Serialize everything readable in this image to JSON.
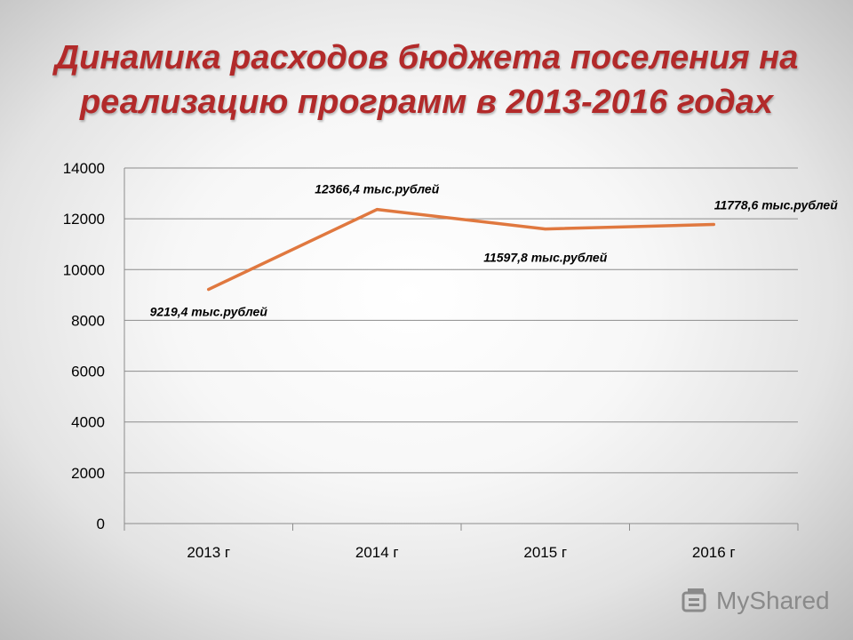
{
  "title_lines": [
    "Динамика расходов бюджета поселения на",
    "реализацию программ в 2013-2016 годах"
  ],
  "chart_data": {
    "type": "line",
    "categories": [
      "2013 г",
      "2014 г",
      "2015 г",
      "2016 г"
    ],
    "series": [
      {
        "values": [
          9219.4,
          12366.4,
          11597.8,
          11778.6
        ],
        "data_labels": [
          "9219,4 тыс.рублей",
          "12366,4 тыс.рублей",
          "11597,8 тыс.рублей",
          "11778,6 тыс.рублей"
        ],
        "color": "#e0783f"
      }
    ],
    "ylim": [
      0,
      14000
    ],
    "yticks": [
      0,
      2000,
      4000,
      6000,
      8000,
      10000,
      12000,
      14000
    ],
    "grid": true,
    "legend": "none"
  },
  "watermark": {
    "text": "MyShared",
    "icon": "mybook-logo-icon"
  }
}
